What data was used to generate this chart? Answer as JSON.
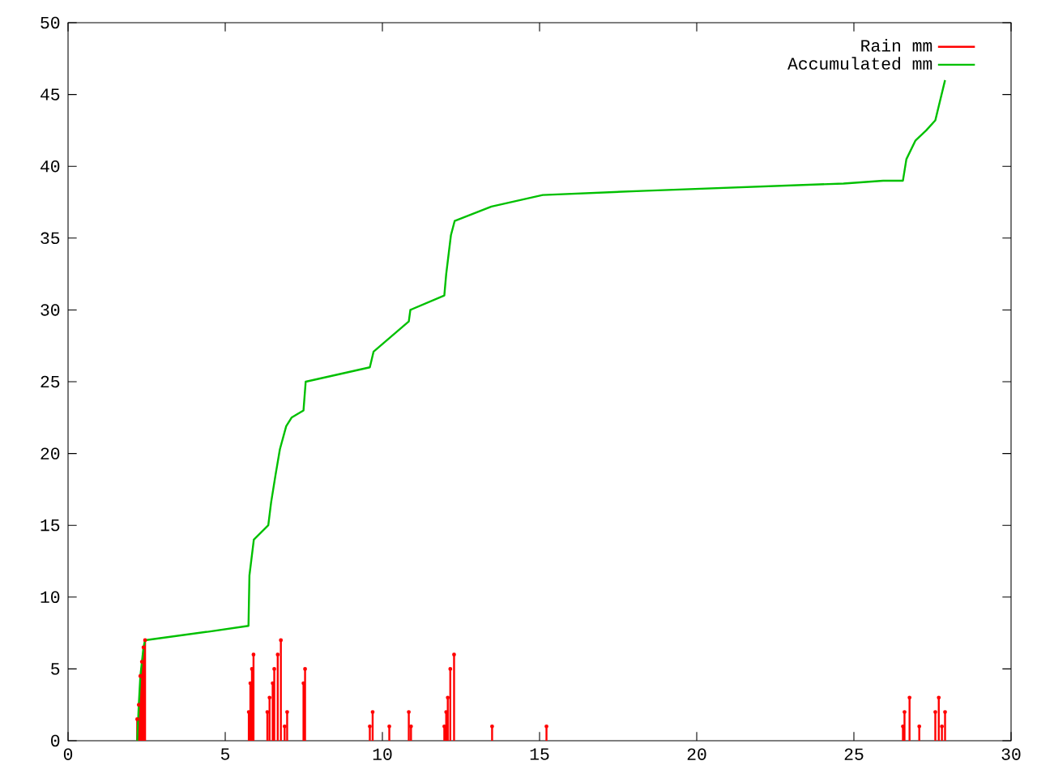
{
  "chart_data": {
    "type": "lollipop",
    "series": [
      {
        "name": "Rain mm",
        "color": "#ff0000",
        "x": [
          2.2,
          2.25,
          2.3,
          2.35,
          2.4,
          2.45,
          5.75,
          5.8,
          5.85,
          5.9,
          6.34,
          6.41,
          6.51,
          6.56,
          6.67,
          6.77,
          6.89,
          6.97,
          7.49,
          7.54,
          9.6,
          9.69,
          10.22,
          10.84,
          10.91,
          11.97,
          12.03,
          12.08,
          12.16,
          12.28,
          13.49,
          15.22,
          26.56,
          26.61,
          26.77,
          27.08,
          27.59,
          27.7,
          27.8,
          27.9
        ],
        "values": [
          1.5,
          2.5,
          4.5,
          5.5,
          6.5,
          7,
          2,
          4,
          5,
          6,
          2,
          3,
          4,
          5,
          6,
          7,
          1,
          2,
          4,
          5,
          1,
          2,
          1,
          2,
          1,
          1,
          2,
          3,
          5,
          6,
          1,
          1,
          1,
          2,
          3,
          1,
          2,
          3,
          1,
          2
        ]
      },
      {
        "name": "Accumulated mm",
        "type": "line",
        "color": "#00c000",
        "x": [
          2.2,
          2.25,
          2.3,
          2.35,
          2.4,
          2.45,
          4.48,
          5.74,
          5.77,
          5.91,
          6.37,
          6.46,
          6.6,
          6.74,
          6.94,
          7.11,
          7.49,
          7.56,
          9.6,
          9.72,
          10.84,
          10.89,
          11.97,
          12.03,
          12.18,
          12.3,
          13.47,
          15.1,
          18.4,
          24.67,
          25.93,
          26.56,
          26.67,
          26.96,
          27.3,
          27.59,
          27.9
        ],
        "values": [
          0,
          2.5,
          4.5,
          5.5,
          6.5,
          7,
          7.6,
          8,
          11.5,
          14,
          15,
          16.6,
          18.5,
          20.3,
          21.9,
          22.5,
          23,
          25,
          26,
          27.1,
          29.2,
          30,
          31,
          32.5,
          35.2,
          36.2,
          37.2,
          38,
          38.3,
          38.8,
          39,
          39,
          40.5,
          41.8,
          42.5,
          43.2,
          46
        ]
      }
    ],
    "xlim": [
      0,
      30
    ],
    "ylim": [
      0,
      50
    ],
    "xticks": [
      0,
      5,
      10,
      15,
      20,
      25,
      30
    ],
    "yticks": [
      0,
      5,
      10,
      15,
      20,
      25,
      30,
      35,
      40,
      45,
      50
    ],
    "grid": false,
    "legend": "top right"
  }
}
